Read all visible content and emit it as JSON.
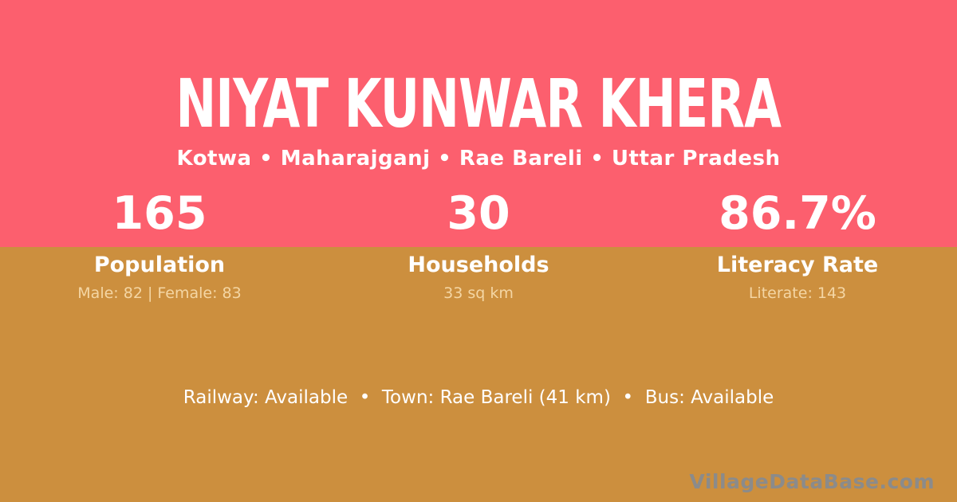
{
  "theme": {
    "top_bg": "#FC5F6E",
    "bottom_bg": "#CC8F3E",
    "text_white": "#FFFFFF",
    "text_cream": "#F4D6A4",
    "watermark_gray": "#8B8B8B"
  },
  "header": {
    "title": "NIYAT KUNWAR KHERA",
    "breadcrumb": "Kotwa • Maharajganj • Rae Bareli • Uttar Pradesh"
  },
  "stats": [
    {
      "value": "165",
      "label": "Population",
      "detail": "Male: 82 | Female: 83"
    },
    {
      "value": "30",
      "label": "Households",
      "detail": "33 sq km"
    },
    {
      "value": "86.7%",
      "label": "Literacy Rate",
      "detail": "Literate: 143"
    }
  ],
  "footer": {
    "info": "Railway: Available  •  Town: Rae Bareli (41 km)  •  Bus: Available",
    "watermark": "VillageDataBase.com"
  }
}
